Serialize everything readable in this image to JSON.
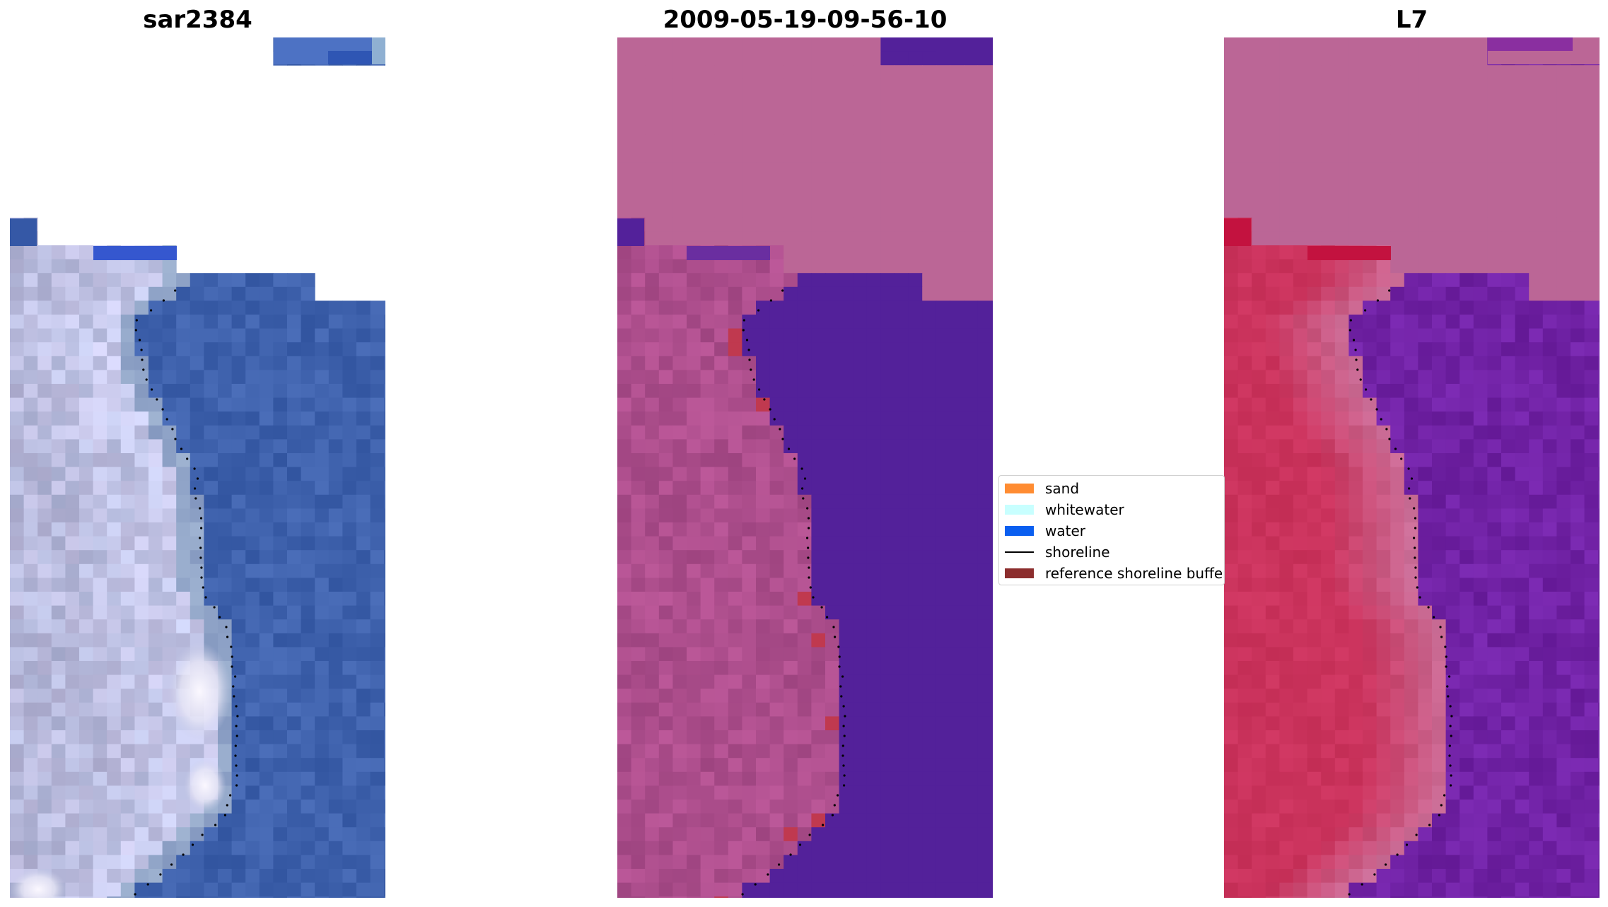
{
  "titles": {
    "left": "sar2384",
    "middle": "2009-05-19-09-56-10",
    "right": "L7"
  },
  "legend": {
    "items": [
      {
        "label": "sand",
        "kind": "patch",
        "color": "#ff8c32"
      },
      {
        "label": "whitewater",
        "kind": "patch",
        "color": "#c8ffff"
      },
      {
        "label": "water",
        "kind": "patch",
        "color": "#0a5ff0"
      },
      {
        "label": "shoreline",
        "kind": "line",
        "color": "#000000"
      },
      {
        "label": "reference shoreline buffer",
        "kind": "patch",
        "color": "#8c2d2d"
      }
    ]
  },
  "colors": {
    "sea_blue": "#3558a6",
    "beach_grey": "#b4bad8",
    "nodata_pink": "#bb6696",
    "class_water_purple": "#53219a",
    "land_magenta": "#a34d88",
    "buffer_red": "#c0394f",
    "index_red": "#c52d57",
    "index_purple": "#6e2a9c"
  }
}
